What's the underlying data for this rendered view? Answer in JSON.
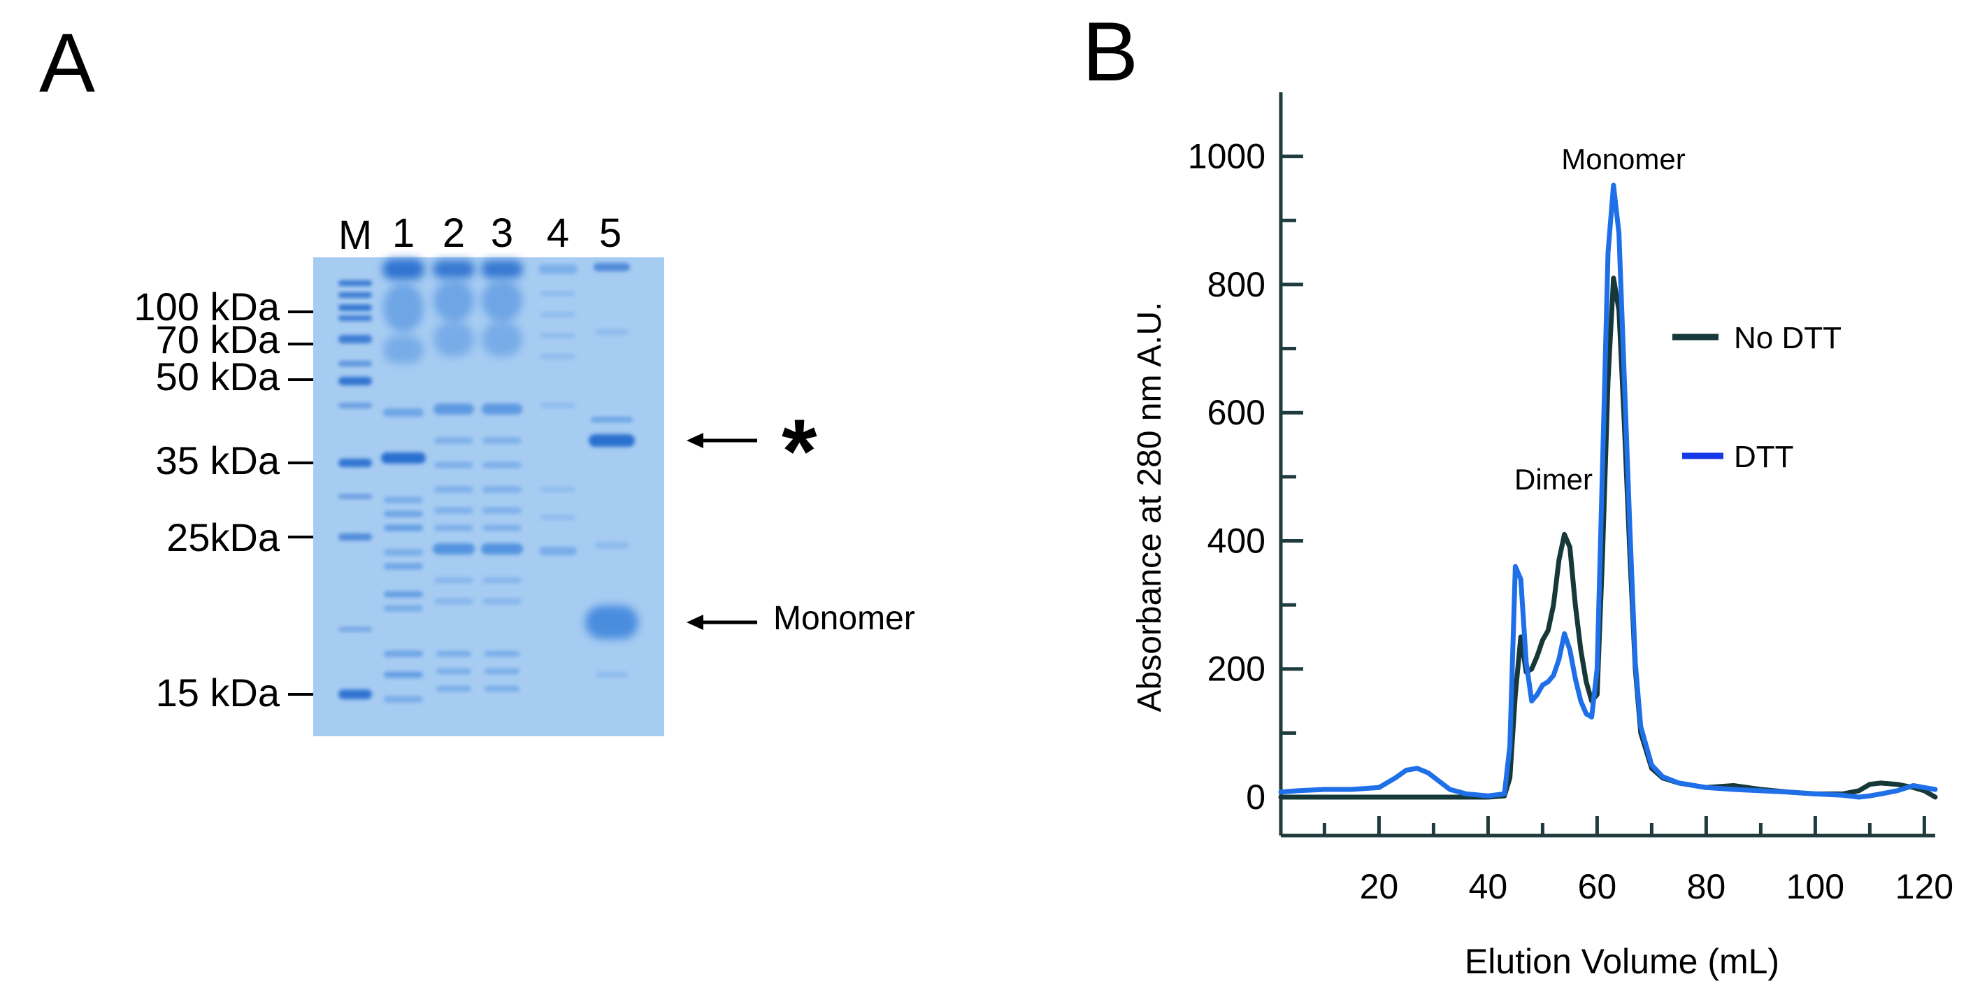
{
  "panel_a": {
    "letter": "A",
    "lane_labels": [
      "M",
      "1",
      "2",
      "3",
      "4",
      "5"
    ],
    "markers": [
      "100 kDa",
      "70 kDa",
      "50 kDa",
      "35 kDa",
      "25kDa",
      "15 kDa"
    ],
    "annotations": {
      "star": "*",
      "monomer": "Monomer"
    },
    "colors": {
      "gel_bg": "#a7ccf2",
      "band": "#3f86dc",
      "band_dark": "#2a6fcf"
    }
  },
  "panel_b": {
    "letter": "B",
    "annotations": {
      "monomer": "Monomer",
      "dimer": "Dimer"
    },
    "colors": {
      "axis": "#1f3b3b",
      "no_dtt": "#163838",
      "dtt": "#1f6fe8"
    }
  },
  "chart_data": {
    "type": "line",
    "title": "",
    "xlabel": "Elution Volume (mL)",
    "ylabel": "Absorbance at 280 nm A.U.",
    "xlim": [
      2,
      122
    ],
    "ylim": [
      -60,
      1100
    ],
    "xticks": [
      20,
      40,
      60,
      80,
      100,
      120
    ],
    "xtick_labels": [
      "20",
      "40",
      "60",
      "80",
      "100",
      "120"
    ],
    "yticks": [
      0,
      200,
      400,
      600,
      800,
      1000
    ],
    "ytick_labels": [
      "0",
      "200",
      "400",
      "600",
      "800",
      "1000"
    ],
    "legend": {
      "placement": "right",
      "entries": [
        "No DTT",
        "DTT"
      ]
    },
    "series": [
      {
        "name": "No DTT",
        "color": "#163838",
        "x": [
          2,
          20,
          40,
          43,
          44,
          45,
          46,
          47,
          48,
          49,
          50,
          51,
          52,
          53,
          54,
          55,
          56,
          57,
          58,
          59,
          60,
          61,
          62,
          63,
          64,
          65,
          66,
          67,
          68,
          70,
          72,
          75,
          80,
          85,
          90,
          95,
          100,
          105,
          108,
          110,
          112,
          115,
          118,
          120,
          122
        ],
        "y": [
          0,
          0,
          0,
          2,
          30,
          160,
          250,
          195,
          200,
          220,
          245,
          260,
          300,
          370,
          410,
          390,
          300,
          230,
          180,
          150,
          160,
          380,
          650,
          810,
          760,
          580,
          380,
          200,
          100,
          45,
          30,
          22,
          15,
          18,
          12,
          8,
          5,
          5,
          10,
          20,
          22,
          20,
          15,
          10,
          0
        ]
      },
      {
        "name": "DTT",
        "color": "#1f6fe8",
        "x": [
          2,
          5,
          10,
          15,
          20,
          23,
          25,
          27,
          29,
          31,
          33,
          36,
          40,
          43,
          44,
          45,
          46,
          47,
          48,
          49,
          50,
          51,
          52,
          53,
          54,
          55,
          56,
          57,
          58,
          59,
          60,
          61,
          62,
          63,
          64,
          65,
          66,
          67,
          68,
          70,
          72,
          75,
          80,
          85,
          90,
          95,
          100,
          105,
          108,
          110,
          112,
          115,
          118,
          120,
          122
        ],
        "y": [
          8,
          10,
          12,
          12,
          15,
          30,
          42,
          45,
          38,
          25,
          12,
          5,
          2,
          5,
          80,
          360,
          340,
          210,
          150,
          160,
          175,
          180,
          190,
          215,
          255,
          230,
          185,
          150,
          130,
          125,
          200,
          520,
          850,
          955,
          880,
          650,
          420,
          210,
          110,
          50,
          32,
          22,
          15,
          12,
          10,
          8,
          5,
          3,
          0,
          2,
          5,
          10,
          18,
          15,
          12
        ]
      }
    ]
  }
}
